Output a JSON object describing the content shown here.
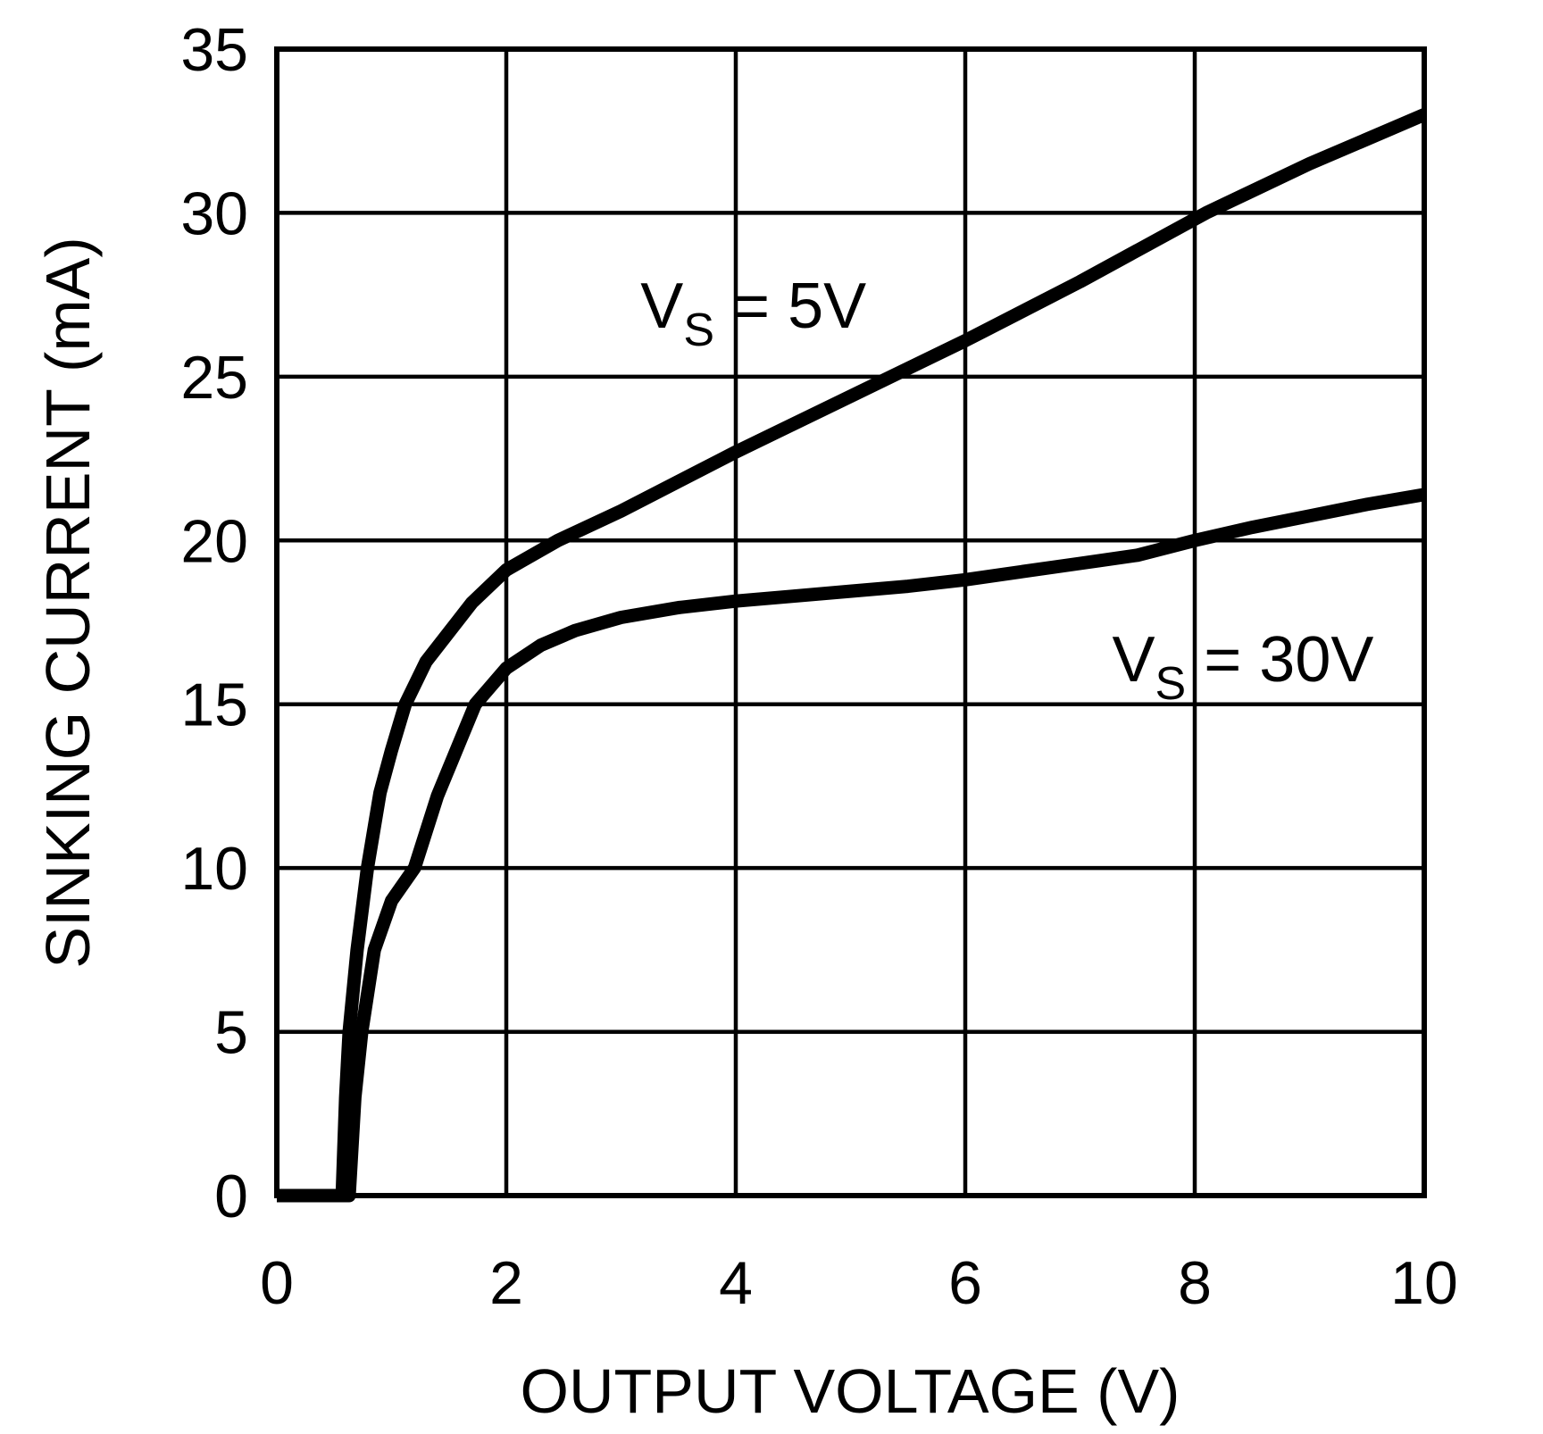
{
  "page": {
    "background": "#ffffff",
    "foreground": "#000000"
  },
  "chart_data": {
    "type": "line",
    "title": "",
    "xlabel": "OUTPUT VOLTAGE (V)",
    "ylabel": "SINKING CURRENT (mA)",
    "xlim": [
      0,
      10
    ],
    "ylim": [
      0,
      35
    ],
    "xticks": [
      0,
      2,
      4,
      6,
      8,
      10
    ],
    "yticks": [
      0,
      5,
      10,
      15,
      20,
      25,
      30,
      35
    ],
    "grid": true,
    "legend_position": "inline-annotations",
    "line_color": "#000000",
    "series": [
      {
        "name": "VS = 5V",
        "label": {
          "prefix": "V",
          "sub": "S",
          "suffix": " = 5V",
          "x": 3.17,
          "y": 26.5
        },
        "points": [
          [
            0,
            0
          ],
          [
            0.57,
            0
          ],
          [
            0.6,
            3
          ],
          [
            0.63,
            5
          ],
          [
            0.7,
            7.5
          ],
          [
            0.79,
            10
          ],
          [
            0.9,
            12.3
          ],
          [
            1.0,
            13.6
          ],
          [
            1.12,
            15
          ],
          [
            1.3,
            16.3
          ],
          [
            1.5,
            17.2
          ],
          [
            1.7,
            18.1
          ],
          [
            2.0,
            19.1
          ],
          [
            2.45,
            20
          ],
          [
            3.0,
            20.9
          ],
          [
            4.0,
            22.7
          ],
          [
            5.0,
            24.4
          ],
          [
            6.0,
            26.1
          ],
          [
            7.0,
            27.9
          ],
          [
            8.1,
            30
          ],
          [
            9.0,
            31.5
          ],
          [
            10.0,
            33.0
          ]
        ]
      },
      {
        "name": "VS = 30V",
        "label": {
          "prefix": "V",
          "sub": "S",
          "suffix": " = 30V",
          "x": 7.28,
          "y": 15.7
        },
        "points": [
          [
            0,
            0
          ],
          [
            0.63,
            0
          ],
          [
            0.68,
            3
          ],
          [
            0.74,
            5
          ],
          [
            0.85,
            7.5
          ],
          [
            1.0,
            9
          ],
          [
            1.2,
            10
          ],
          [
            1.4,
            12.2
          ],
          [
            1.6,
            13.9
          ],
          [
            1.73,
            15
          ],
          [
            2.0,
            16.1
          ],
          [
            2.3,
            16.8
          ],
          [
            2.6,
            17.25
          ],
          [
            3.0,
            17.65
          ],
          [
            3.5,
            17.95
          ],
          [
            4.0,
            18.15
          ],
          [
            4.5,
            18.3
          ],
          [
            5.0,
            18.45
          ],
          [
            5.5,
            18.6
          ],
          [
            6.0,
            18.8
          ],
          [
            6.5,
            19.05
          ],
          [
            7.0,
            19.3
          ],
          [
            7.5,
            19.55
          ],
          [
            8.0,
            20.0
          ],
          [
            8.5,
            20.4
          ],
          [
            9.0,
            20.75
          ],
          [
            9.5,
            21.1
          ],
          [
            10.0,
            21.4
          ]
        ]
      }
    ]
  }
}
